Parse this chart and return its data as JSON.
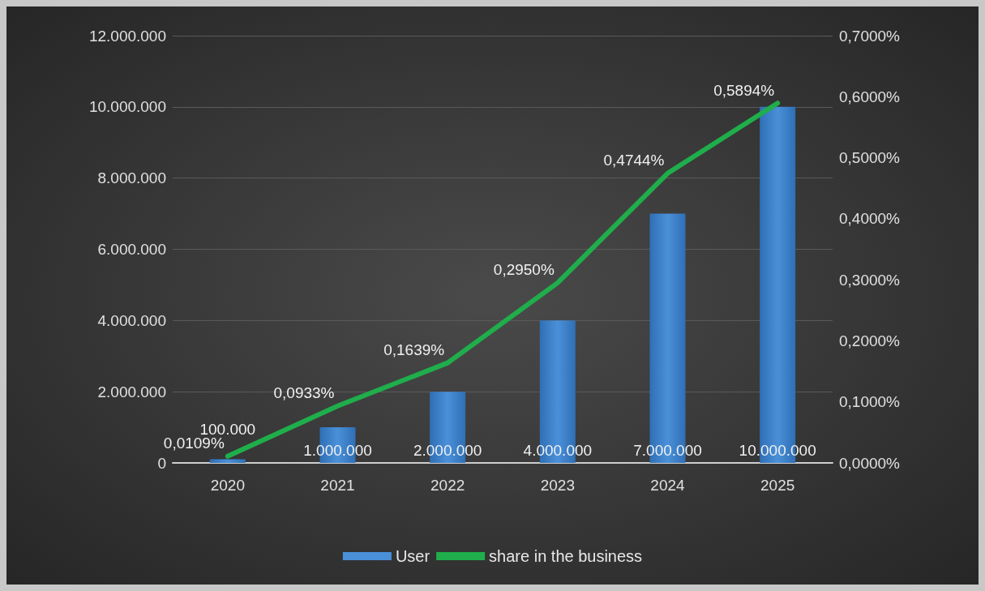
{
  "chart_data": {
    "type": "bar",
    "categories": [
      "2020",
      "2021",
      "2022",
      "2023",
      "2024",
      "2025"
    ],
    "series": [
      {
        "name": "User",
        "type": "bar",
        "color": "#4a90d9",
        "values": [
          100000,
          1000000,
          2000000,
          4000000,
          7000000,
          10000000
        ],
        "value_labels": [
          "100.000",
          "1.000.000",
          "2.000.000",
          "4.000.000",
          "7.000.000",
          "10.000.000"
        ]
      },
      {
        "name": "share in the business",
        "type": "line",
        "axis": "y2",
        "color": "#1fae4b",
        "marker": "none",
        "values": [
          0.0109,
          0.0933,
          0.1639,
          0.295,
          0.4744,
          0.5894
        ],
        "value_labels": [
          "0,0109%",
          "0,0933%",
          "0,1639%",
          "0,2950%",
          "0,4744%",
          "0,5894%"
        ]
      }
    ],
    "ylim": [
      0,
      12000000
    ],
    "yticks": [
      {
        "value": 0,
        "label": "0"
      },
      {
        "value": 2000000,
        "label": "2.000.000"
      },
      {
        "value": 4000000,
        "label": "4.000.000"
      },
      {
        "value": 6000000,
        "label": "6.000.000"
      },
      {
        "value": 8000000,
        "label": "8.000.000"
      },
      {
        "value": 10000000,
        "label": "10.000.000"
      },
      {
        "value": 12000000,
        "label": "12.000.000"
      }
    ],
    "y2lim": [
      0,
      0.7
    ],
    "y2ticks": [
      {
        "value": 0,
        "label": "0,0000%"
      },
      {
        "value": 0.1,
        "label": "0,1000%"
      },
      {
        "value": 0.2,
        "label": "0,2000%"
      },
      {
        "value": 0.3,
        "label": "0,3000%"
      },
      {
        "value": 0.4,
        "label": "0,4000%"
      },
      {
        "value": 0.5,
        "label": "0,5000%"
      },
      {
        "value": 0.6,
        "label": "0,6000%"
      },
      {
        "value": 0.7,
        "label": "0,7000%"
      }
    ],
    "grid": "y",
    "legend": "bottom"
  }
}
